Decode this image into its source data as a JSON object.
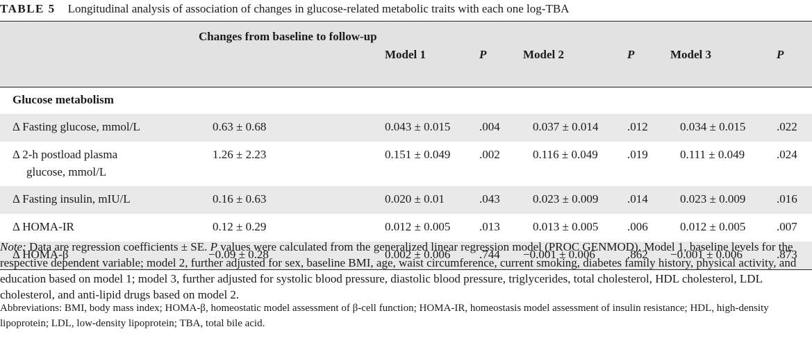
{
  "caption": {
    "label": "TABLE 5",
    "title": "Longitudinal analysis of association of changes in glucose-related metabolic traits with each one log-TBA"
  },
  "table": {
    "headers": {
      "changes": "Changes from baseline to follow-up",
      "model1": "Model 1",
      "p1": "P",
      "model2": "Model 2",
      "p2": "P",
      "model3": "Model 3",
      "p3": "P"
    },
    "section": "Glucose metabolism",
    "rows": [
      {
        "label": "Δ Fasting glucose, mmol/L",
        "label2": "",
        "change": "0.63 ± 0.68",
        "m1": "0.043 ± 0.015",
        "p1": ".004",
        "m2": "0.037 ± 0.014",
        "p2": ".012",
        "m3": "0.034 ± 0.015",
        "p3": ".022"
      },
      {
        "label": "Δ 2-h postload plasma",
        "label2": "glucose, mmol/L",
        "change": "1.26 ± 2.23",
        "m1": "0.151 ± 0.049",
        "p1": ".002",
        "m2": "0.116 ± 0.049",
        "p2": ".019",
        "m3": "0.111 ± 0.049",
        "p3": ".024"
      },
      {
        "label": "Δ Fasting insulin, mIU/L",
        "label2": "",
        "change": "0.16 ± 0.63",
        "m1": "0.020 ± 0.01",
        "p1": ".043",
        "m2": "0.023 ± 0.009",
        "p2": ".014",
        "m3": "0.023 ± 0.009",
        "p3": ".016"
      },
      {
        "label": "Δ HOMA-IR",
        "label2": "",
        "change": "0.12 ± 0.29",
        "m1": "0.012 ± 0.005",
        "p1": ".013",
        "m2": "0.013 ± 0.005",
        "p2": ".006",
        "m3": "0.012 ± 0.005",
        "p3": ".007"
      },
      {
        "label": "Δ HOMA-β",
        "label2": "",
        "change": "−0.09 ± 0.28",
        "m1": "0.002 ± 0.006",
        "p1": ".744",
        "m2": "−0.001 ± 0.006",
        "p2": ".862",
        "m3": "−0.001 ± 0.006",
        "p3": ".873"
      }
    ]
  },
  "note": {
    "lead": "Note:",
    "text": " Data are regression coefficients ± SE. ",
    "p_italic": "P",
    "text2": " values were calculated from the generalized linear regression model (PROC GENMOD). Model 1, baseline levels for the respective dependent variable; model 2, further adjusted for sex, baseline BMI, age, waist circumference, current smoking, diabetes family history, physical activity, and education based on model 1; model 3, further adjusted for systolic blood pressure, diastolic blood pressure, triglycerides, total cholesterol, HDL cholesterol, LDL cholesterol, and anti-lipid drugs based on model 2."
  },
  "abbreviations": "Abbreviations: BMI, body mass index; HOMA-β, homeostatic model assessment of β-cell function; HOMA-IR, homeostasis model assessment of insulin resistance; HDL, high-density lipoprotein; LDL, low-density lipoprotein; TBA, total bile acid."
}
